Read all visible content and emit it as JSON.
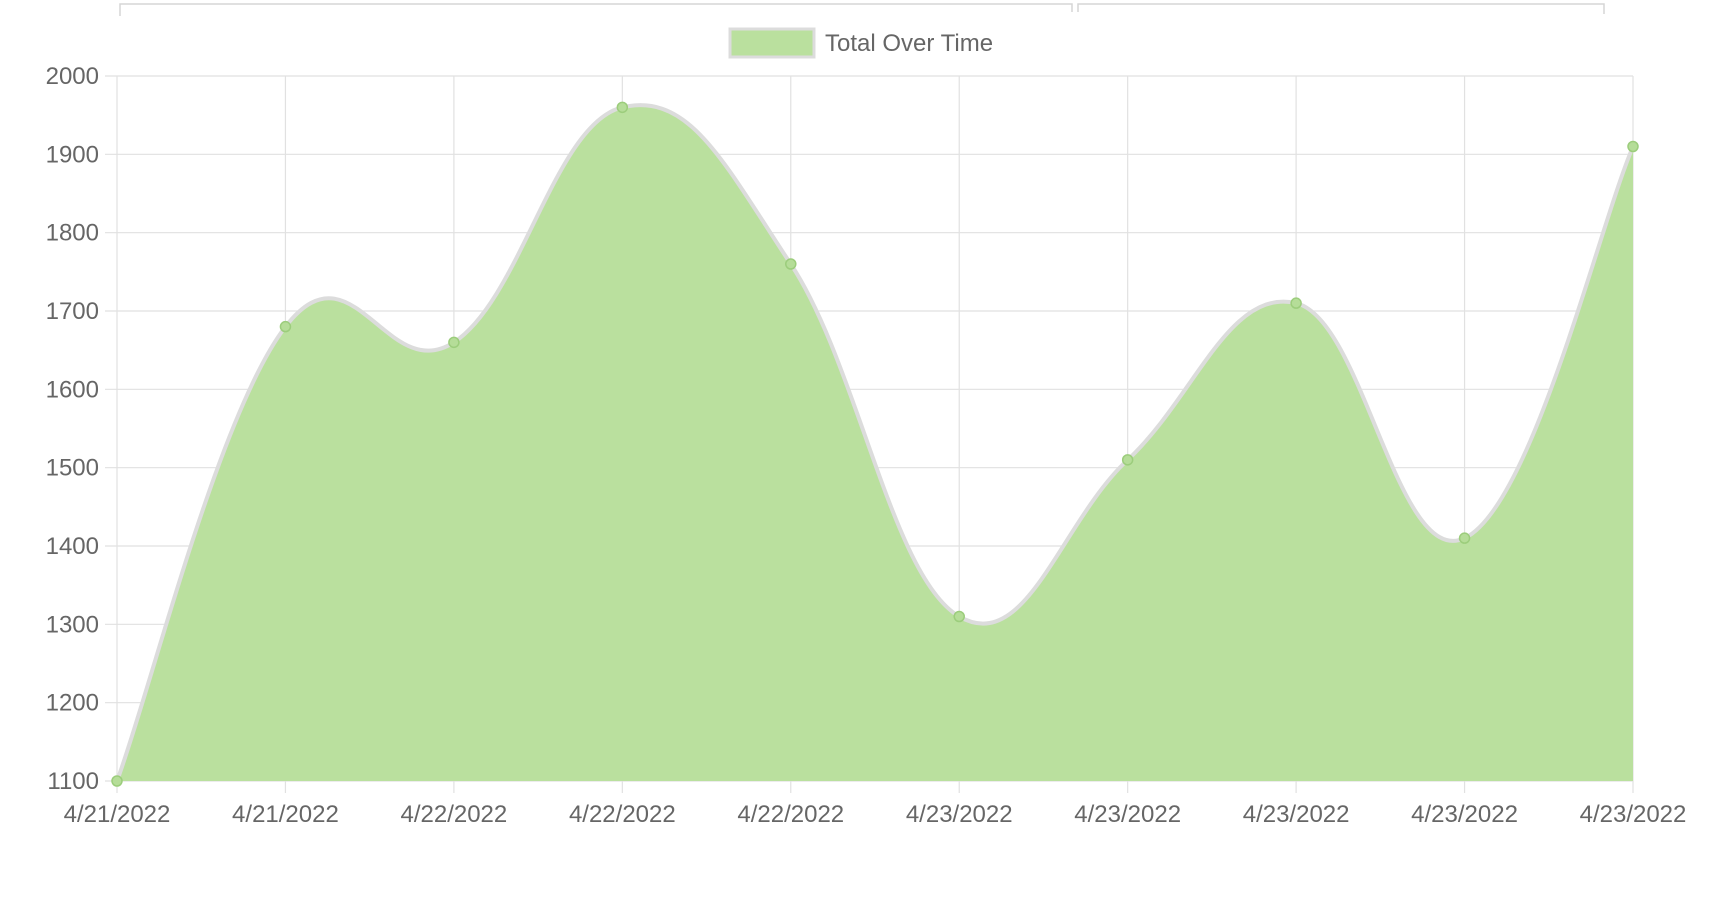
{
  "chart_data": {
    "type": "area",
    "categories": [
      "4/21/2022",
      "4/21/2022",
      "4/22/2022",
      "4/22/2022",
      "4/22/2022",
      "4/23/2022",
      "4/23/2022",
      "4/23/2022",
      "4/23/2022",
      "4/23/2022"
    ],
    "series": [
      {
        "name": "Total Over Time",
        "values": [
          1100,
          1680,
          1660,
          1960,
          1760,
          1310,
          1510,
          1710,
          1410,
          1910
        ]
      }
    ],
    "y_ticks": [
      "2000",
      "1900",
      "1800",
      "1700",
      "1600",
      "1500",
      "1400",
      "1300",
      "1200",
      "1100"
    ],
    "ylim": [
      1100,
      2000
    ],
    "grid": true,
    "legend_position": "top-center",
    "colors": {
      "fill": "#bae09e",
      "stroke": "#dcdcdc",
      "point": "#b5dd98",
      "point_border": "#9ccd7c"
    }
  }
}
